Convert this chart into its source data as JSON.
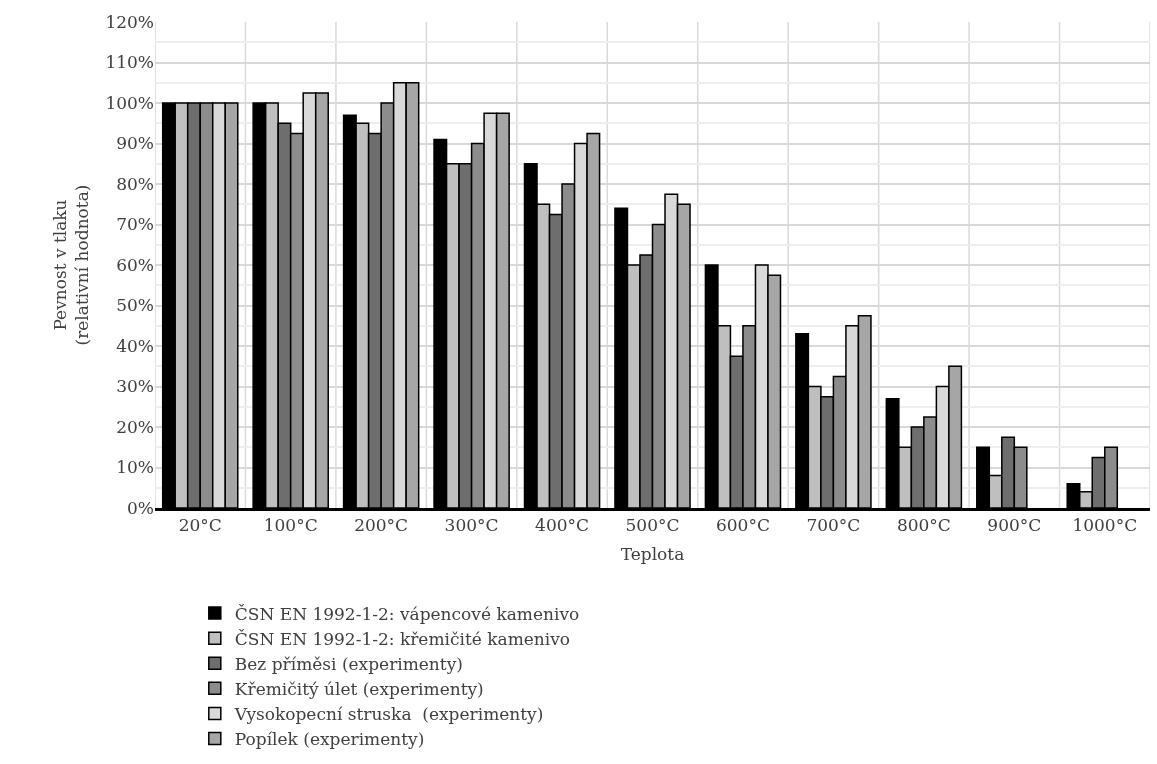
{
  "chart_data": {
    "type": "bar",
    "xlabel": "Teplota",
    "ylabel": "Pevnost v tlaku\n(relativní hodnota)",
    "categories": [
      "20°C",
      "100°C",
      "200°C",
      "300°C",
      "400°C",
      "500°C",
      "600°C",
      "700°C",
      "800°C",
      "900°C",
      "1000°C"
    ],
    "series": [
      {
        "name": "ČSN EN 1992-1-2: vápencové kamenivo",
        "color": "#000000",
        "values": [
          100,
          100,
          97,
          91,
          85,
          74,
          60,
          43,
          27,
          15,
          6
        ]
      },
      {
        "name": "ČSN EN 1992-1-2: křemičité kamenivo",
        "color": "#bfbfbf",
        "values": [
          100,
          100,
          95,
          85,
          75,
          60,
          45,
          30,
          15,
          8,
          4
        ]
      },
      {
        "name": "Bez příměsi (experimenty)",
        "color": "#6e6e6e",
        "values": [
          100,
          95,
          92.5,
          85,
          72.5,
          62.5,
          37.5,
          27.5,
          20,
          17.5,
          12.5
        ]
      },
      {
        "name": "Křemičitý úlet (experimenty)",
        "color": "#8c8c8c",
        "values": [
          100,
          92.5,
          100,
          90,
          80,
          70,
          45,
          32.5,
          22.5,
          15,
          15
        ]
      },
      {
        "name": "Vysokopecní struska  (experimenty)",
        "color": "#d9d9d9",
        "values": [
          100,
          102.5,
          105,
          97.5,
          90,
          77.5,
          60,
          45,
          30,
          null,
          null
        ]
      },
      {
        "name": "Popílek (experimenty)",
        "color": "#a6a6a6",
        "values": [
          100,
          102.5,
          105,
          97.5,
          92.5,
          75,
          57.5,
          47.5,
          35,
          null,
          null
        ]
      }
    ],
    "ylim": [
      0,
      120
    ],
    "yticks": [
      {
        "value": 0,
        "label": "0%"
      },
      {
        "value": 10,
        "label": "10%"
      },
      {
        "value": 20,
        "label": "20%"
      },
      {
        "value": 30,
        "label": "30%"
      },
      {
        "value": 40,
        "label": "40%"
      },
      {
        "value": 50,
        "label": "50%"
      },
      {
        "value": 60,
        "label": "60%"
      },
      {
        "value": 70,
        "label": "70%"
      },
      {
        "value": 80,
        "label": "80%"
      },
      {
        "value": 90,
        "label": "90%"
      },
      {
        "value": 100,
        "label": "100%"
      },
      {
        "value": 110,
        "label": "110%"
      },
      {
        "value": 120,
        "label": "120%"
      }
    ],
    "grid": true,
    "legend": "bottom"
  }
}
